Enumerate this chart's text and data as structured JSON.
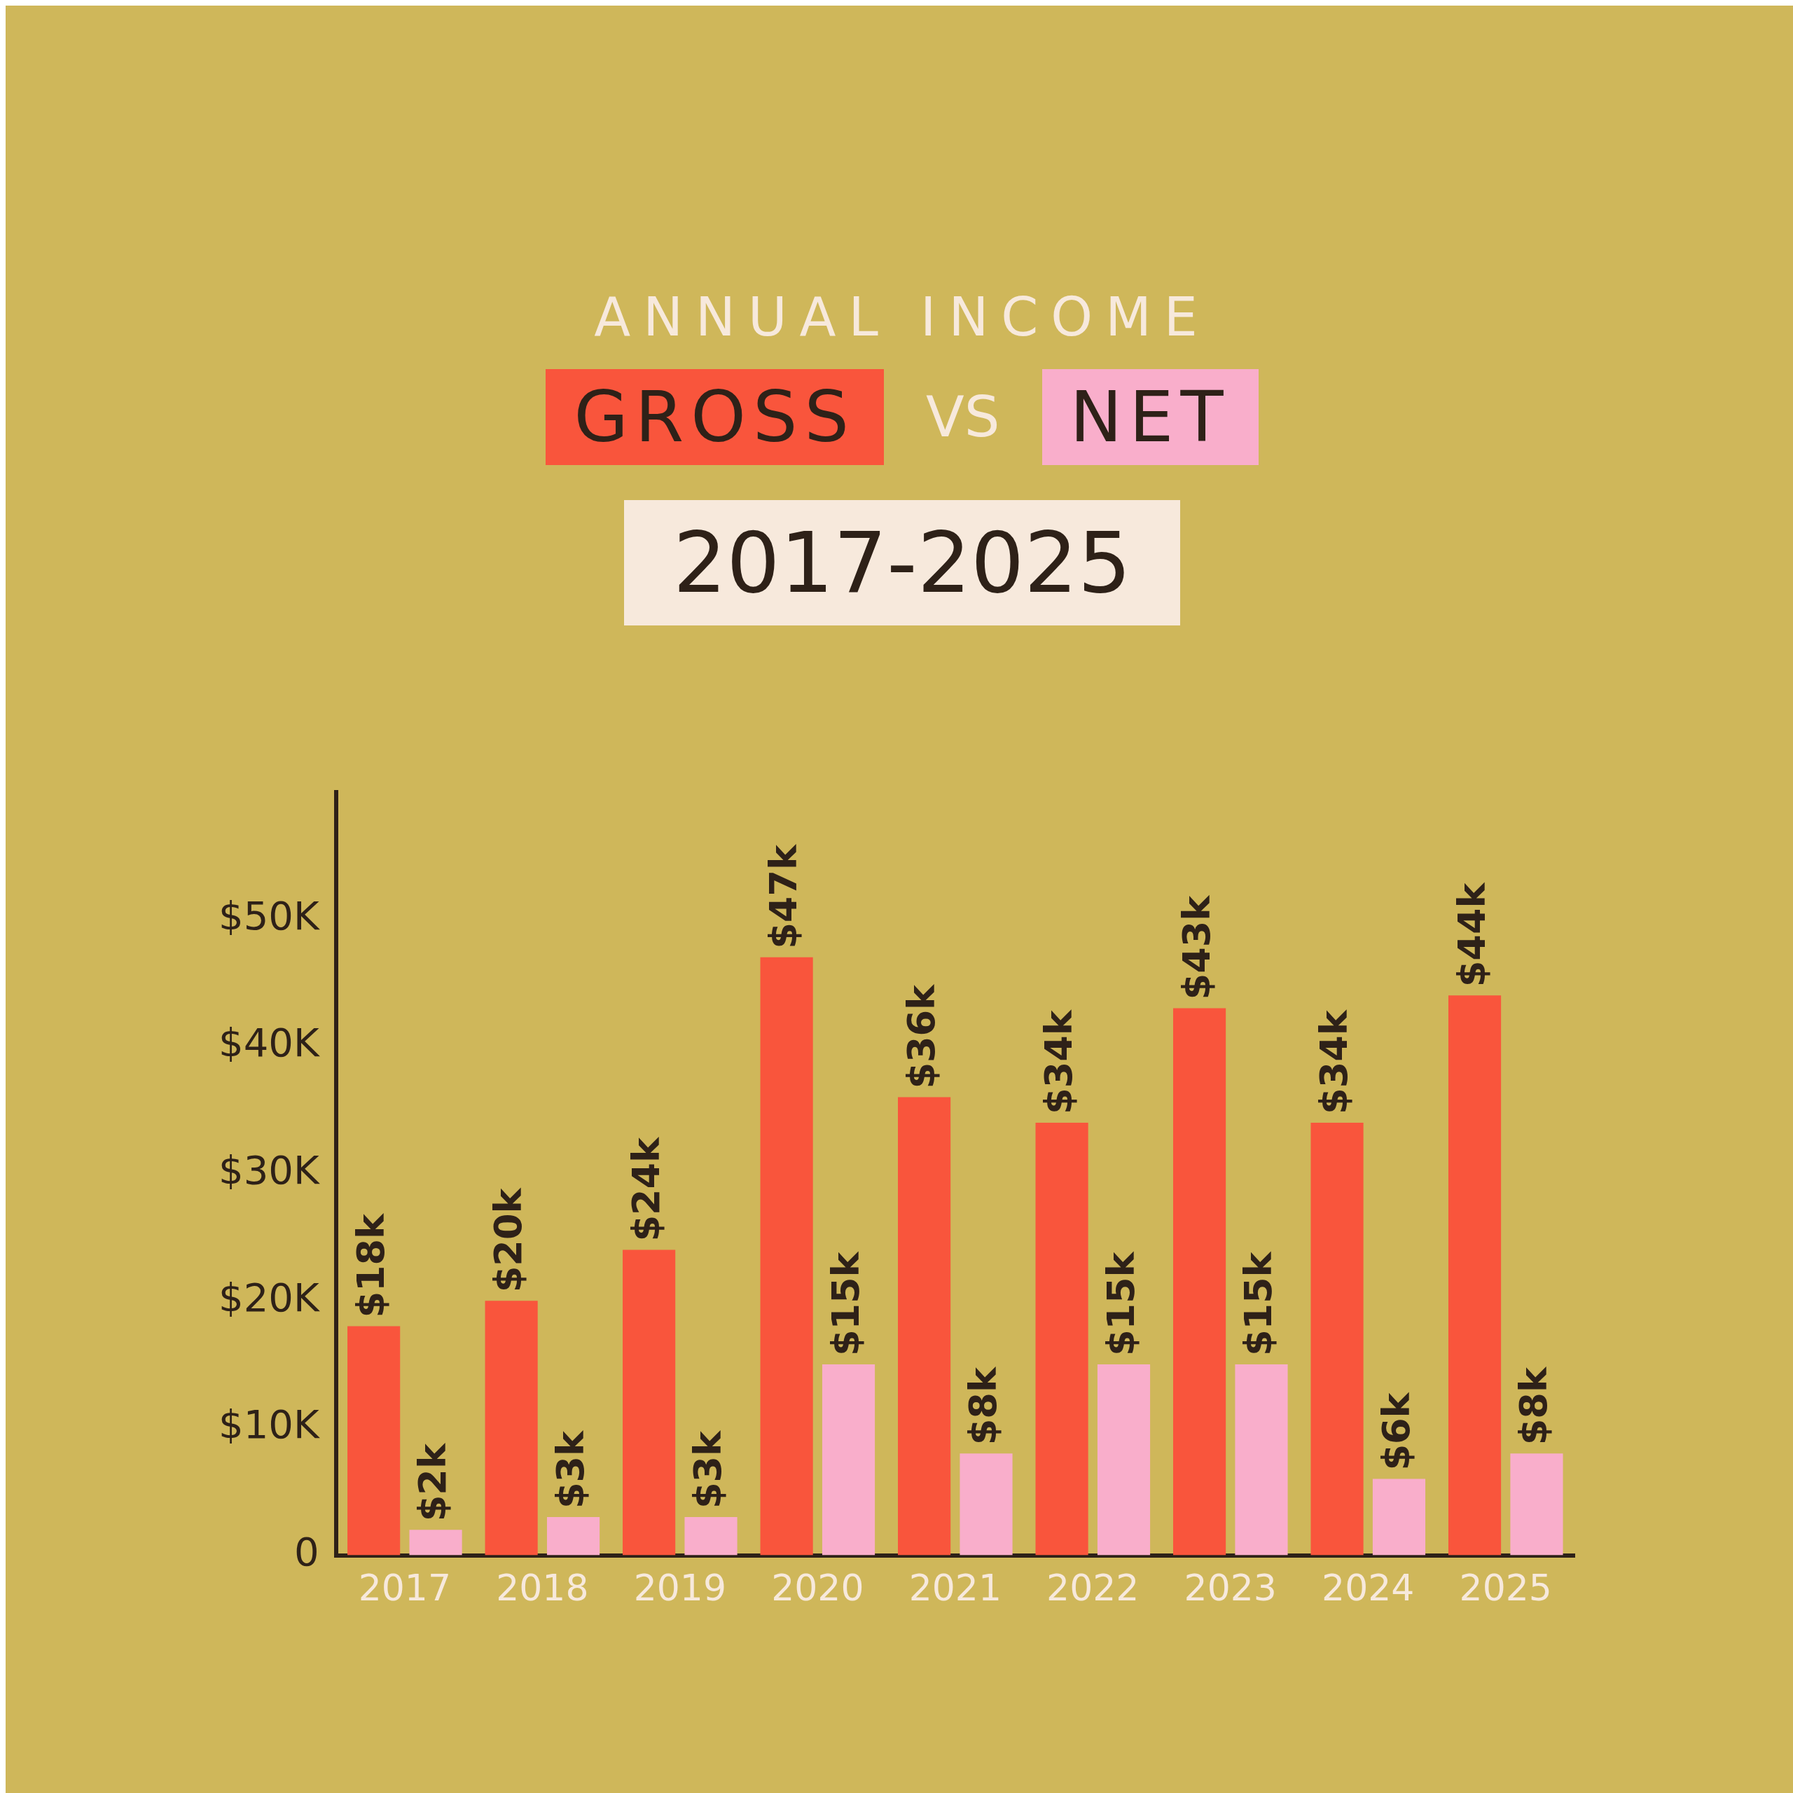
{
  "chart_data": {
    "type": "bar",
    "title": "ANNUAL INCOME",
    "subtitle": "2017-2025",
    "legend_title": "VS",
    "legend": "top",
    "categories": [
      "2017",
      "2018",
      "2019",
      "2020",
      "2021",
      "2022",
      "2023",
      "2024",
      "2025"
    ],
    "series": [
      {
        "name": "GROSS",
        "color": "#f9553c",
        "values": [
          18,
          20,
          24,
          47,
          36,
          34,
          43,
          34,
          44
        ],
        "value_labels": [
          "$18k",
          "$20k",
          "$24k",
          "$47k",
          "$36k",
          "$34k",
          "$43k",
          "$34k",
          "$44k"
        ]
      },
      {
        "name": "NET",
        "color": "#f9aecb",
        "values": [
          2,
          3,
          3,
          15,
          8,
          15,
          15,
          6,
          8
        ],
        "value_labels": [
          "$2k",
          "$3k",
          "$3k",
          "$15k",
          "$8k",
          "$15k",
          "$15k",
          "$6k",
          "$8k"
        ]
      }
    ],
    "ylim": [
      0,
      60
    ],
    "yticks": [
      0,
      {
        "value": 10,
        "label": "$10K"
      },
      {
        "value": 20,
        "label": "$20K"
      },
      {
        "value": 30,
        "label": "$30K"
      },
      {
        "value": 40,
        "label": "$40K"
      },
      {
        "value": 50,
        "label": "$50K"
      }
    ],
    "grid": false
  }
}
